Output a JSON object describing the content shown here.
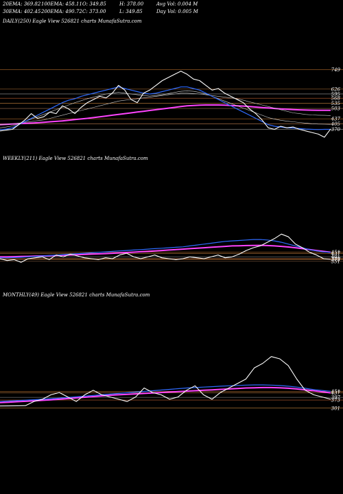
{
  "header": {
    "row1": [
      {
        "label": "20EMA: 369.82"
      },
      {
        "label": "100EMA: 458.11"
      },
      {
        "label": "O: 349.85"
      },
      {
        "label": "H: 378.00"
      },
      {
        "label": "Avg Vol: 0.004  M"
      }
    ],
    "row2": [
      {
        "label": "30EMA: 402.45"
      },
      {
        "label": "200EMA: 490.72"
      },
      {
        "label": "C: 373.00"
      },
      {
        "label": "L: 349.85"
      },
      {
        "label": "Day Vol: 0.005 M"
      }
    ]
  },
  "chart_data": [
    {
      "type": "line",
      "title": "DAILY(250) Eagle  View  526821 charts MunafaSutra.com",
      "y_range": [
        320,
        800
      ],
      "price_levels": [
        {
          "label": "749",
          "value": 749
        },
        {
          "label": "626",
          "value": 626
        },
        {
          "label": "595",
          "value": 595
        },
        {
          "label": "568",
          "value": 568
        },
        {
          "label": "535",
          "value": 535
        },
        {
          "label": "503",
          "value": 503
        },
        {
          "label": "437",
          "value": 437
        },
        {
          "label": "405",
          "value": 405
        },
        {
          "label": "370",
          "value": 370
        }
      ],
      "series": [
        {
          "values": [
            360,
            365,
            370,
            400,
            430,
            470,
            440,
            450,
            480,
            470,
            520,
            500,
            470,
            510,
            540,
            560,
            580,
            570,
            600,
            650,
            620,
            560,
            540,
            600,
            620,
            650,
            680,
            700,
            720,
            740,
            720,
            690,
            680,
            650,
            620,
            630,
            600,
            580,
            560,
            540,
            500,
            470,
            430,
            380,
            370,
            390,
            380,
            385,
            370,
            360,
            350,
            340,
            320,
            373
          ]
        },
        {
          "values": [
            368,
            372,
            380,
            400,
            420,
            440,
            460,
            480,
            500,
            520,
            540,
            555,
            565,
            580,
            590,
            600,
            610,
            620,
            630,
            640,
            630,
            620,
            610,
            600,
            595,
            600,
            610,
            620,
            630,
            640,
            640,
            630,
            620,
            600,
            580,
            560,
            540,
            520,
            500,
            480,
            460,
            440,
            420,
            400,
            390,
            385,
            380,
            378,
            375,
            372,
            370,
            369,
            370,
            370
          ]
        },
        {
          "values": [
            380,
            385,
            392,
            405,
            420,
            435,
            450,
            465,
            480,
            495,
            510,
            525,
            540,
            552,
            565,
            575,
            585,
            595,
            600,
            605,
            600,
            595,
            590,
            585,
            582,
            585,
            590,
            598,
            605,
            612,
            615,
            612,
            605,
            595,
            580,
            565,
            550,
            535,
            520,
            505,
            490,
            475,
            460,
            445,
            435,
            428,
            422,
            418,
            414,
            410,
            406,
            404,
            403,
            402
          ]
        },
        {
          "values": [
            400,
            402,
            405,
            410,
            415,
            420,
            425,
            430,
            440,
            450,
            460,
            470,
            480,
            490,
            500,
            510,
            520,
            530,
            540,
            550,
            555,
            560,
            565,
            570,
            575,
            580,
            585,
            590,
            595,
            600,
            600,
            598,
            595,
            590,
            585,
            580,
            575,
            570,
            565,
            555,
            545,
            535,
            525,
            515,
            505,
            495,
            485,
            475,
            470,
            465,
            462,
            460,
            459,
            458
          ]
        },
        {
          "values": [
            400,
            402,
            404,
            406,
            408,
            410,
            412,
            415,
            418,
            421,
            424,
            428,
            432,
            436,
            440,
            445,
            450,
            455,
            460,
            465,
            470,
            475,
            480,
            485,
            490,
            495,
            500,
            505,
            510,
            515,
            520,
            522,
            524,
            525,
            525,
            525,
            524,
            522,
            520,
            518,
            515,
            512,
            509,
            506,
            503,
            500,
            498,
            496,
            494,
            493,
            492,
            491,
            491,
            491
          ]
        }
      ]
    },
    {
      "type": "line",
      "title": "WEEKLY(211) Eagle  View  526821 charts MunafaSutra.com",
      "y_range": [
        320,
        960
      ],
      "price_levels": [
        {
          "label": "451",
          "value": 451
        },
        {
          "label": "437",
          "value": 437
        },
        {
          "label": "401",
          "value": 401
        },
        {
          "label": "380",
          "value": 380
        },
        {
          "label": "373",
          "value": 373
        },
        {
          "label": "351",
          "value": 351
        }
      ],
      "series": [
        {
          "values": [
            380,
            360,
            370,
            340,
            380,
            390,
            400,
            370,
            420,
            400,
            430,
            410,
            390,
            380,
            370,
            390,
            380,
            420,
            440,
            400,
            380,
            400,
            420,
            390,
            380,
            370,
            380,
            400,
            390,
            380,
            400,
            420,
            390,
            400,
            430,
            470,
            500,
            520,
            560,
            600,
            650,
            620,
            540,
            500,
            450,
            420,
            380,
            373
          ]
        },
        {
          "values": [
            390,
            390,
            392,
            395,
            400,
            405,
            410,
            415,
            420,
            425,
            430,
            435,
            440,
            445,
            450,
            455,
            460,
            465,
            470,
            475,
            480,
            485,
            490,
            495,
            500,
            505,
            510,
            520,
            530,
            540,
            550,
            560,
            570,
            575,
            580,
            585,
            590,
            590,
            585,
            575,
            560,
            540,
            520,
            500,
            480,
            465,
            455,
            450
          ]
        },
        {
          "values": [
            400,
            400,
            402,
            404,
            406,
            408,
            410,
            412,
            415,
            418,
            421,
            424,
            427,
            430,
            433,
            436,
            440,
            444,
            448,
            452,
            456,
            460,
            465,
            470,
            475,
            480,
            485,
            490,
            495,
            500,
            505,
            510,
            515,
            520,
            522,
            524,
            525,
            526,
            524,
            520,
            515,
            508,
            500,
            490,
            480,
            470,
            460,
            451
          ]
        }
      ]
    },
    {
      "type": "line",
      "title": "MONTHLY(49) Eagle  View  526821 charts MunafaSutra.com",
      "y_range": [
        300,
        850
      ],
      "price_levels": [
        {
          "label": "451",
          "value": 451
        },
        {
          "label": "437",
          "value": 437
        },
        {
          "label": "397",
          "value": 397
        },
        {
          "label": "373",
          "value": 373
        },
        {
          "label": "301",
          "value": 301
        }
      ],
      "series": [
        {
          "values": [
            320,
            321,
            322,
            323,
            360,
            380,
            420,
            440,
            400,
            360,
            420,
            460,
            420,
            400,
            380,
            360,
            400,
            480,
            440,
            420,
            380,
            400,
            460,
            500,
            420,
            380,
            440,
            480,
            520,
            560,
            660,
            700,
            760,
            740,
            680,
            560,
            460,
            420,
            400,
            380
          ]
        },
        {
          "values": [
            360,
            364,
            368,
            372,
            376,
            380,
            385,
            390,
            396,
            402,
            408,
            414,
            420,
            426,
            432,
            438,
            444,
            450,
            456,
            462,
            468,
            474,
            480,
            484,
            488,
            492,
            496,
            500,
            503,
            506,
            508,
            508,
            506,
            502,
            496,
            488,
            478,
            466,
            458,
            451
          ]
        },
        {
          "values": [
            350,
            354,
            358,
            362,
            366,
            370,
            375,
            380,
            386,
            392,
            398,
            404,
            410,
            416,
            420,
            424,
            428,
            432,
            436,
            440,
            444,
            448,
            452,
            456,
            460,
            464,
            468,
            472,
            476,
            480,
            482,
            484,
            484,
            482,
            478,
            472,
            464,
            456,
            446,
            437
          ]
        }
      ]
    }
  ]
}
